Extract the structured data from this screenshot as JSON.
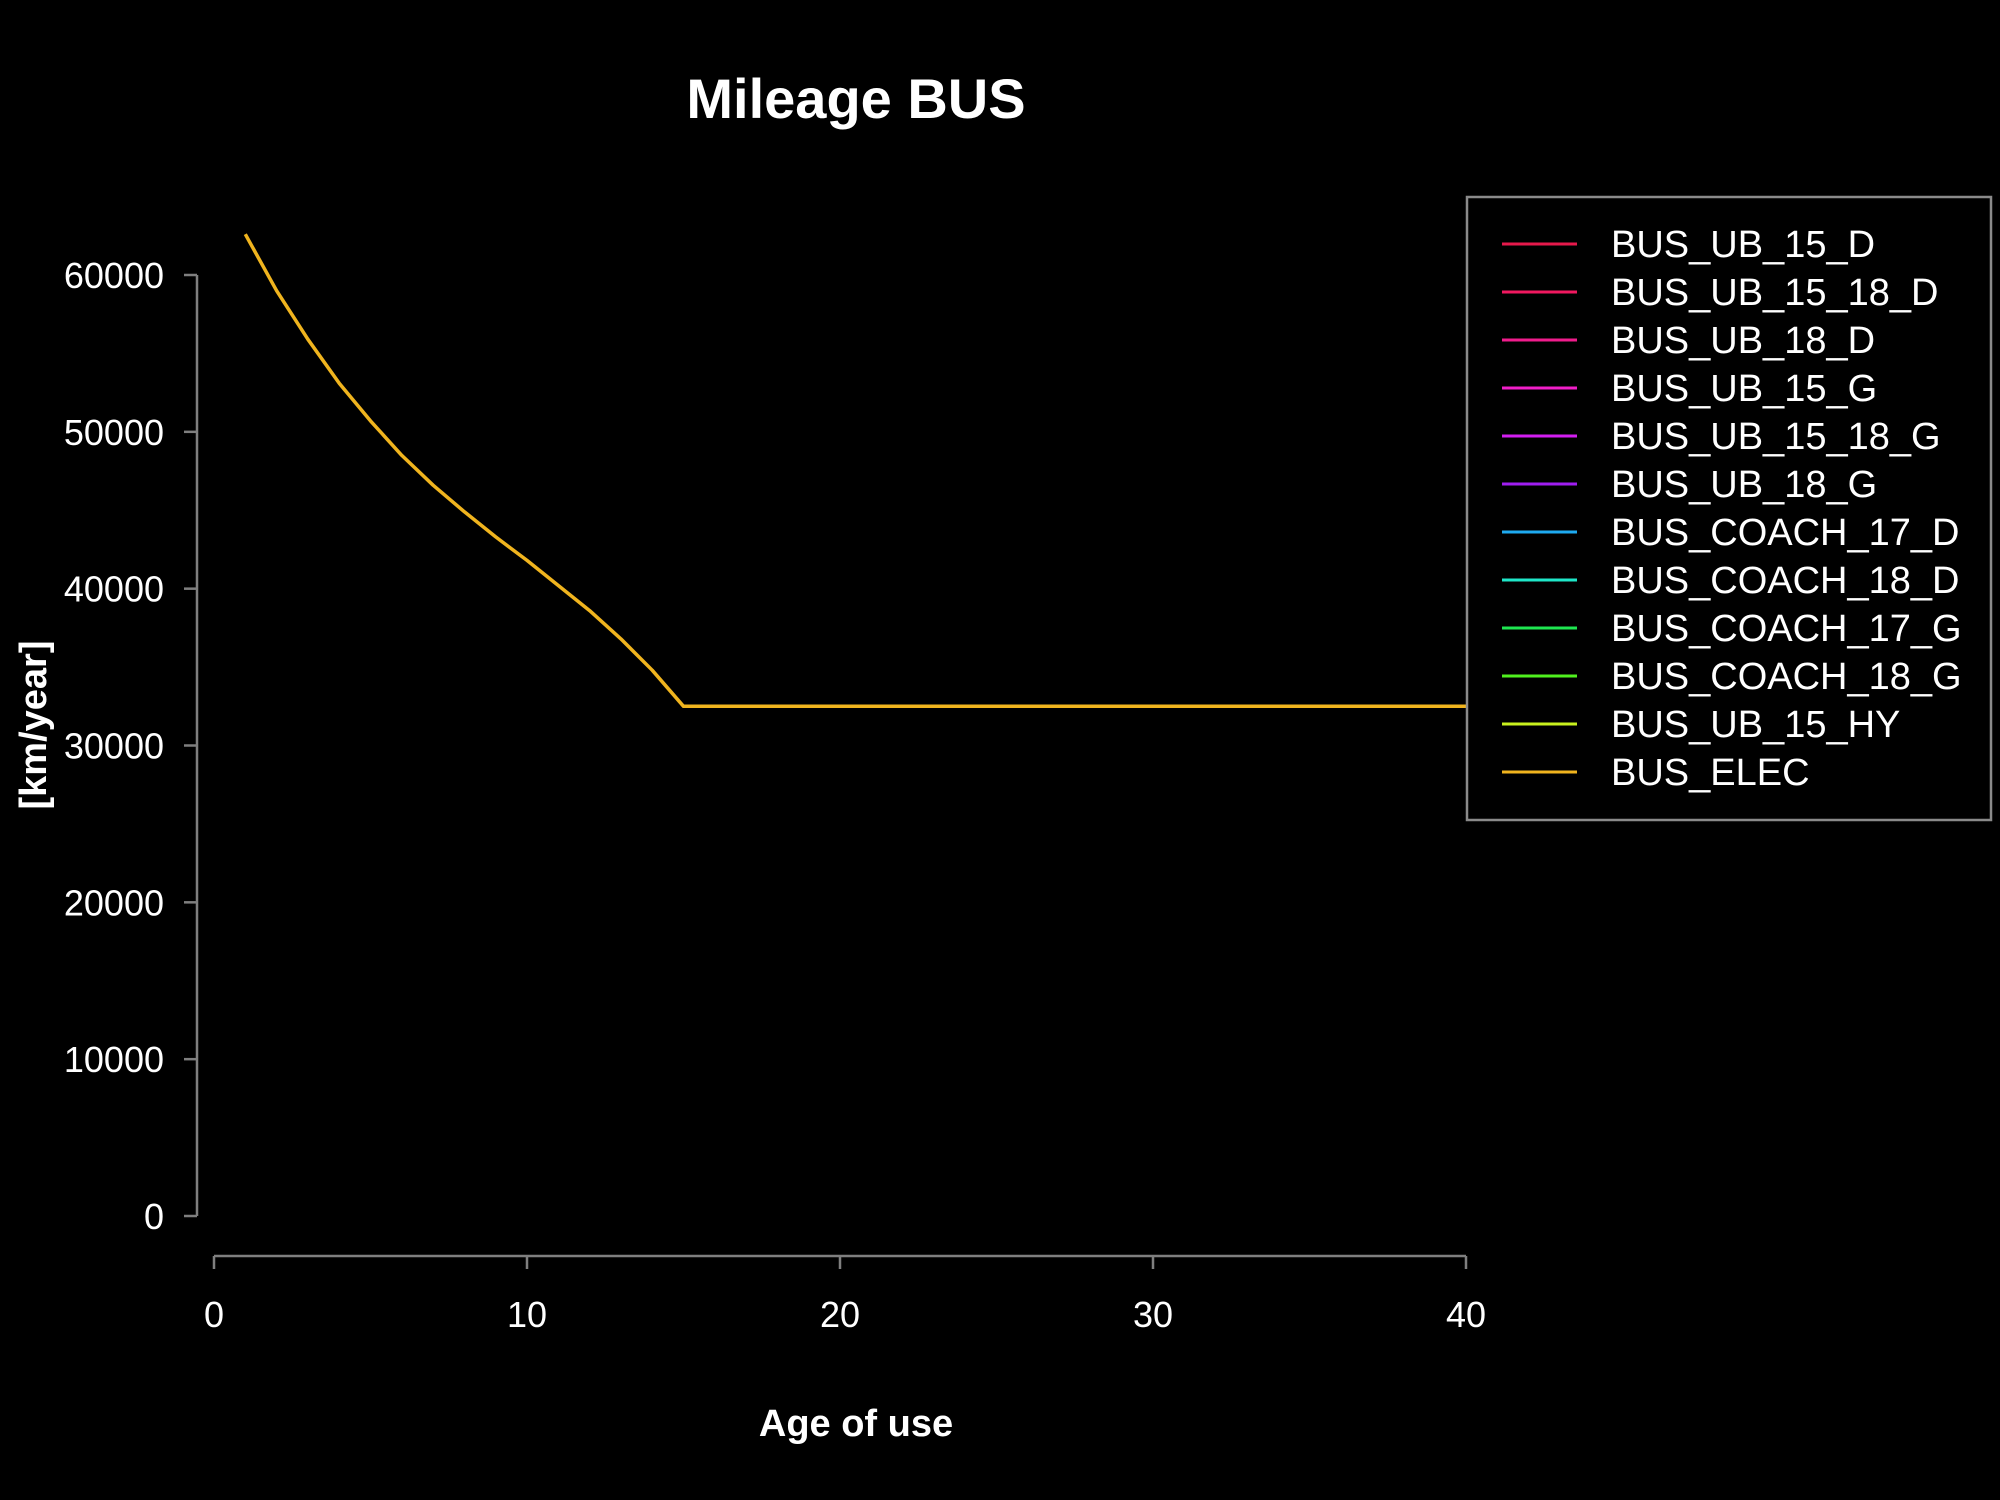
{
  "chart_data": {
    "type": "line",
    "title": "Mileage BUS",
    "xlabel": "Age of use",
    "ylabel": "[km/year]",
    "xlim": [
      0,
      40
    ],
    "ylim": [
      0,
      60000
    ],
    "xticks": [
      0,
      10,
      20,
      30,
      40
    ],
    "yticks": [
      0,
      10000,
      20000,
      30000,
      40000,
      50000,
      60000
    ],
    "grid": false,
    "legend_position": "top-right, outside plot",
    "series": [
      {
        "name": "BUS_UB_15_D",
        "color": "#e6194b",
        "x": [],
        "y": []
      },
      {
        "name": "BUS_UB_15_18_D",
        "color": "#f0185f",
        "x": [],
        "y": []
      },
      {
        "name": "BUS_UB_18_D",
        "color": "#f01c8c",
        "x": [],
        "y": []
      },
      {
        "name": "BUS_UB_15_G",
        "color": "#f01ec8",
        "x": [],
        "y": []
      },
      {
        "name": "BUS_UB_15_18_G",
        "color": "#d21ef0",
        "x": [],
        "y": []
      },
      {
        "name": "BUS_UB_18_G",
        "color": "#a01ef0",
        "x": [],
        "y": []
      },
      {
        "name": "BUS_COACH_17_D",
        "color": "#1eaaf0",
        "x": [],
        "y": []
      },
      {
        "name": "BUS_COACH_18_D",
        "color": "#1ee6c8",
        "x": [],
        "y": []
      },
      {
        "name": "BUS_COACH_17_G",
        "color": "#1ee650",
        "x": [],
        "y": []
      },
      {
        "name": "BUS_COACH_18_G",
        "color": "#50f01e",
        "x": [],
        "y": []
      },
      {
        "name": "BUS_UB_15_HY",
        "color": "#c8f01e",
        "x": [],
        "y": []
      },
      {
        "name": "BUS_ELEC",
        "color": "#f0b41e",
        "x": [
          1,
          2,
          3,
          4,
          5,
          6,
          7,
          8,
          9,
          10,
          11,
          12,
          13,
          14,
          15,
          16,
          17,
          18,
          19,
          20,
          21,
          22,
          23,
          24,
          25,
          26,
          27,
          28,
          29,
          30,
          31,
          32,
          33,
          34,
          35,
          36,
          37,
          38,
          39,
          40
        ],
        "y": [
          62600,
          59000,
          55900,
          53100,
          50700,
          48500,
          46600,
          44900,
          43300,
          41800,
          40200,
          38600,
          36800,
          34800,
          32500,
          32500,
          32500,
          32500,
          32500,
          32500,
          32500,
          32500,
          32500,
          32500,
          32500,
          32500,
          32500,
          32500,
          32500,
          32500,
          32500,
          32500,
          32500,
          32500,
          32500,
          32500,
          32500,
          32500,
          32500,
          32500
        ]
      }
    ]
  }
}
